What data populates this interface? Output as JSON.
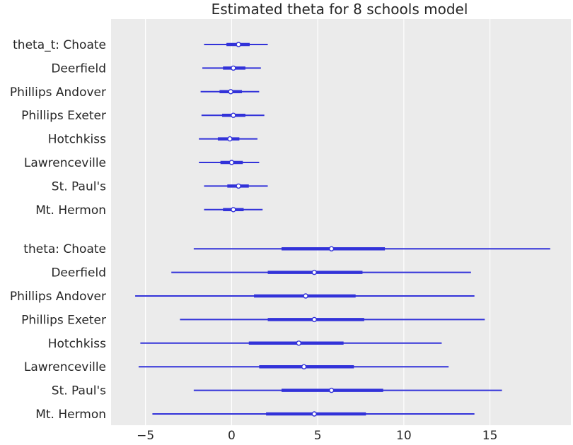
{
  "chart_data": {
    "type": "forest",
    "title": "Estimated theta for 8 schools model",
    "xlabel": "",
    "ylabel": "",
    "xlim": [
      -7,
      19.7
    ],
    "xticks": [
      -5,
      0,
      5,
      10,
      15
    ],
    "xtick_labels": [
      "−5",
      "0",
      "5",
      "10",
      "15"
    ],
    "grid": true,
    "colors": {
      "background": "#ebebeb",
      "grid": "#ffffff",
      "series": "#3232d9",
      "point_fill": "#ffffff"
    },
    "groups": [
      {
        "rows": [
          {
            "label": "theta_t: Choate",
            "hdi94": [
              -1.6,
              2.1
            ],
            "hdi50": [
              -0.3,
              1.05
            ],
            "median": 0.4
          },
          {
            "label": "Deerfield",
            "hdi94": [
              -1.7,
              1.7
            ],
            "hdi50": [
              -0.5,
              0.8
            ],
            "median": 0.1
          },
          {
            "label": "Phillips Andover",
            "hdi94": [
              -1.8,
              1.6
            ],
            "hdi50": [
              -0.7,
              0.6
            ],
            "median": -0.05
          },
          {
            "label": "Phillips Exeter",
            "hdi94": [
              -1.75,
              1.9
            ],
            "hdi50": [
              -0.55,
              0.8
            ],
            "median": 0.1
          },
          {
            "label": "Hotchkiss",
            "hdi94": [
              -1.9,
              1.5
            ],
            "hdi50": [
              -0.8,
              0.45
            ],
            "median": -0.1
          },
          {
            "label": "Lawrenceville",
            "hdi94": [
              -1.9,
              1.6
            ],
            "hdi50": [
              -0.65,
              0.65
            ],
            "median": 0.0
          },
          {
            "label": "St. Paul's",
            "hdi94": [
              -1.6,
              2.1
            ],
            "hdi50": [
              -0.25,
              1.0
            ],
            "median": 0.4
          },
          {
            "label": "Mt. Hermon",
            "hdi94": [
              -1.6,
              1.8
            ],
            "hdi50": [
              -0.5,
              0.7
            ],
            "median": 0.1
          }
        ]
      },
      {
        "rows": [
          {
            "label": "theta: Choate",
            "hdi94": [
              -2.2,
              18.5
            ],
            "hdi50": [
              2.9,
              8.9
            ],
            "median": 5.8
          },
          {
            "label": "Deerfield",
            "hdi94": [
              -3.5,
              13.9
            ],
            "hdi50": [
              2.1,
              7.6
            ],
            "median": 4.8
          },
          {
            "label": "Phillips Andover",
            "hdi94": [
              -5.6,
              14.1
            ],
            "hdi50": [
              1.3,
              7.2
            ],
            "median": 4.3
          },
          {
            "label": "Phillips Exeter",
            "hdi94": [
              -3.0,
              14.7
            ],
            "hdi50": [
              2.1,
              7.7
            ],
            "median": 4.8
          },
          {
            "label": "Hotchkiss",
            "hdi94": [
              -5.3,
              12.2
            ],
            "hdi50": [
              1.0,
              6.5
            ],
            "median": 3.9
          },
          {
            "label": "Lawrenceville",
            "hdi94": [
              -5.4,
              12.6
            ],
            "hdi50": [
              1.6,
              7.1
            ],
            "median": 4.2
          },
          {
            "label": "St. Paul's",
            "hdi94": [
              -2.2,
              15.7
            ],
            "hdi50": [
              2.9,
              8.8
            ],
            "median": 5.8
          },
          {
            "label": "Mt. Hermon",
            "hdi94": [
              -4.6,
              14.1
            ],
            "hdi50": [
              2.0,
              7.8
            ],
            "median": 4.8
          }
        ]
      }
    ]
  }
}
